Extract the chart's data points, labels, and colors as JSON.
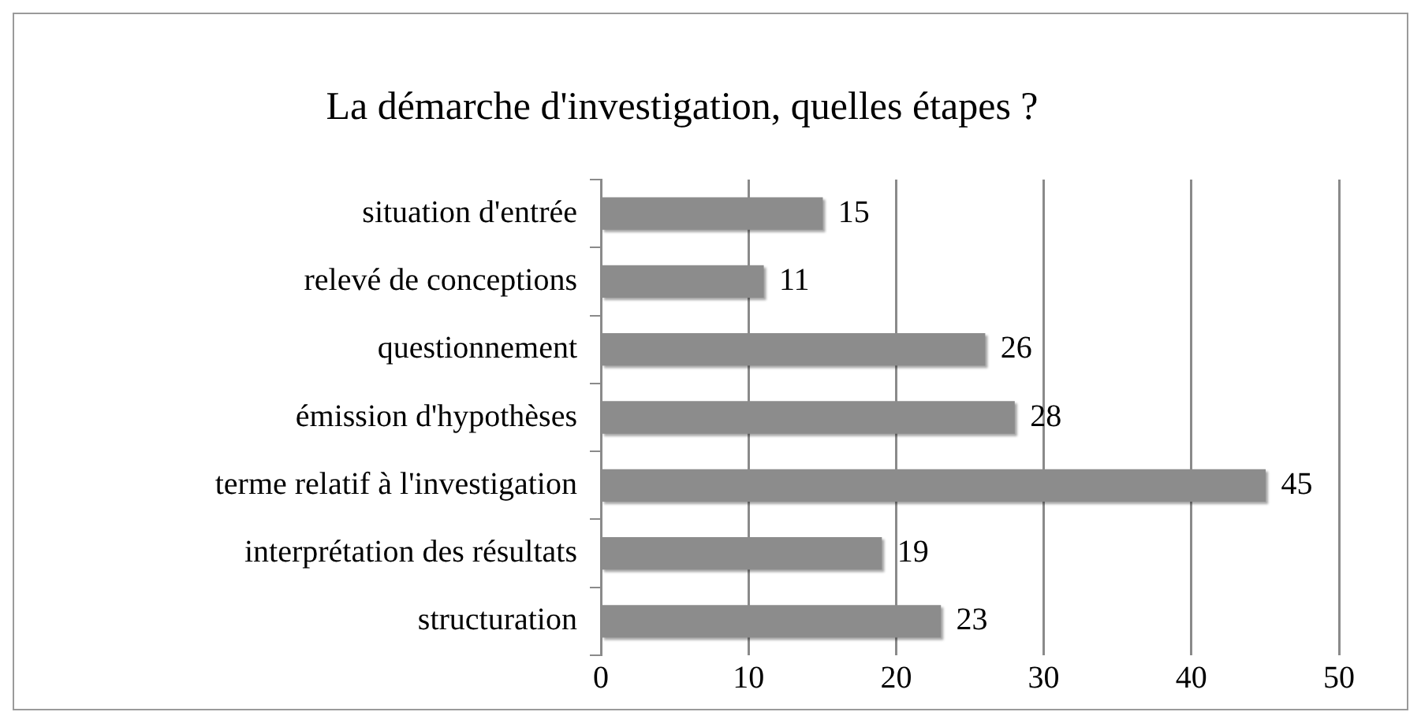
{
  "chart_data": {
    "type": "bar",
    "orientation": "horizontal",
    "title": "La démarche d'investigation, quelles étapes ?",
    "categories": [
      "situation d'entrée",
      "relevé de conceptions",
      "questionnement",
      "émission d'hypothèses",
      "terme relatif à l'investigation",
      "interprétation des résultats",
      "structuration"
    ],
    "values": [
      15,
      11,
      26,
      28,
      45,
      19,
      23
    ],
    "color": "#8c8c8c",
    "xlim": [
      0,
      50
    ],
    "xticks": [
      0,
      10,
      20,
      30,
      40,
      50
    ],
    "grid": "x",
    "data_labels": true,
    "legend": false
  }
}
